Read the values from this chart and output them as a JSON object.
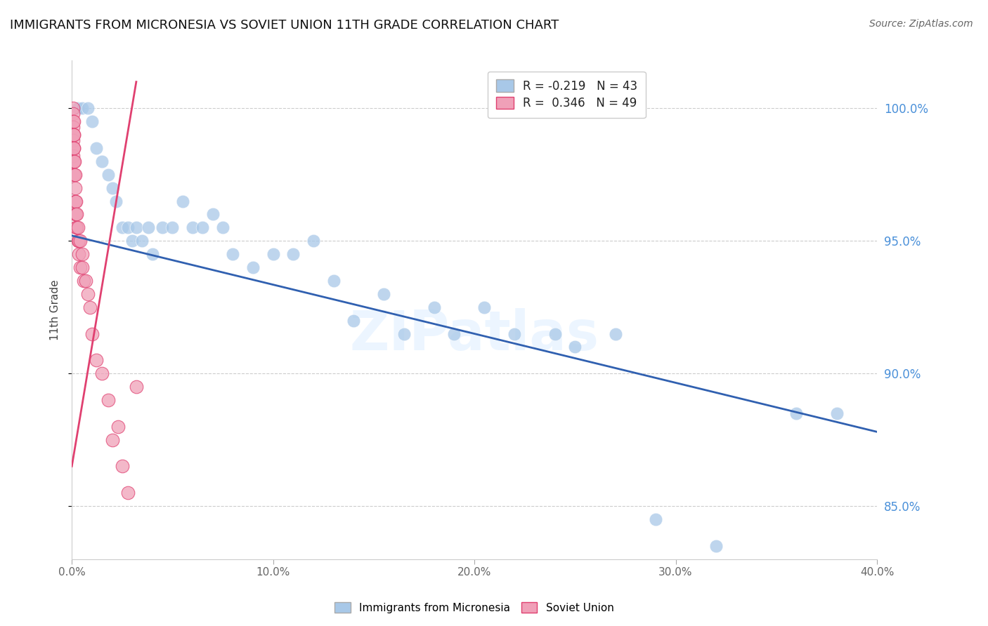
{
  "title": "IMMIGRANTS FROM MICRONESIA VS SOVIET UNION 11TH GRADE CORRELATION CHART",
  "source": "Source: ZipAtlas.com",
  "ylabel": "11th Grade",
  "y_ticks": [
    85.0,
    90.0,
    95.0,
    100.0
  ],
  "x_ticks": [
    0,
    10,
    20,
    30,
    40
  ],
  "x_min": 0.0,
  "x_max": 40.0,
  "y_min": 83.0,
  "y_max": 101.8,
  "blue_R": -0.219,
  "blue_N": 43,
  "pink_R": 0.346,
  "pink_N": 49,
  "blue_color": "#a8c8e8",
  "pink_color": "#f0a0b8",
  "blue_line_color": "#3060b0",
  "pink_line_color": "#e04070",
  "watermark": "ZIPatlas",
  "blue_scatter_x": [
    0.3,
    0.5,
    0.8,
    1.0,
    1.2,
    1.5,
    1.8,
    2.0,
    2.2,
    2.5,
    2.8,
    3.0,
    3.2,
    3.5,
    3.8,
    4.0,
    4.5,
    5.0,
    5.5,
    6.0,
    6.5,
    7.0,
    7.5,
    8.0,
    9.0,
    10.0,
    11.0,
    12.0,
    13.0,
    14.0,
    15.5,
    16.5,
    18.0,
    19.0,
    20.5,
    22.0,
    24.0,
    25.0,
    27.0,
    29.0,
    32.0,
    36.0,
    38.0
  ],
  "blue_scatter_y": [
    100.0,
    100.0,
    100.0,
    99.5,
    98.5,
    98.0,
    97.5,
    97.0,
    96.5,
    95.5,
    95.5,
    95.0,
    95.5,
    95.0,
    95.5,
    94.5,
    95.5,
    95.5,
    96.5,
    95.5,
    95.5,
    96.0,
    95.5,
    94.5,
    94.0,
    94.5,
    94.5,
    95.0,
    93.5,
    92.0,
    93.0,
    91.5,
    92.5,
    91.5,
    92.5,
    91.5,
    91.5,
    91.0,
    91.5,
    84.5,
    83.5,
    88.5,
    88.5
  ],
  "pink_scatter_x": [
    0.05,
    0.05,
    0.05,
    0.05,
    0.05,
    0.05,
    0.05,
    0.05,
    0.08,
    0.08,
    0.08,
    0.08,
    0.1,
    0.1,
    0.1,
    0.1,
    0.12,
    0.12,
    0.15,
    0.15,
    0.15,
    0.18,
    0.18,
    0.2,
    0.2,
    0.2,
    0.25,
    0.25,
    0.3,
    0.3,
    0.35,
    0.35,
    0.4,
    0.4,
    0.5,
    0.5,
    0.6,
    0.7,
    0.8,
    0.9,
    1.0,
    1.2,
    1.5,
    1.8,
    2.0,
    2.3,
    2.5,
    2.8,
    3.2
  ],
  "pink_scatter_y": [
    100.0,
    99.8,
    99.5,
    99.3,
    99.0,
    98.8,
    98.5,
    98.2,
    99.5,
    99.0,
    98.5,
    98.0,
    99.0,
    98.5,
    98.0,
    97.5,
    98.0,
    97.5,
    97.5,
    97.0,
    96.5,
    96.5,
    96.0,
    96.5,
    96.0,
    95.5,
    96.0,
    95.5,
    95.5,
    95.0,
    95.0,
    94.5,
    95.0,
    94.0,
    94.5,
    94.0,
    93.5,
    93.5,
    93.0,
    92.5,
    91.5,
    90.5,
    90.0,
    89.0,
    87.5,
    88.0,
    86.5,
    85.5,
    89.5
  ],
  "blue_line_x0": 0.0,
  "blue_line_y0": 95.2,
  "blue_line_x1": 40.0,
  "blue_line_y1": 87.8,
  "pink_line_x0": 0.0,
  "pink_line_y0": 86.5,
  "pink_line_x1": 3.2,
  "pink_line_y1": 101.0
}
